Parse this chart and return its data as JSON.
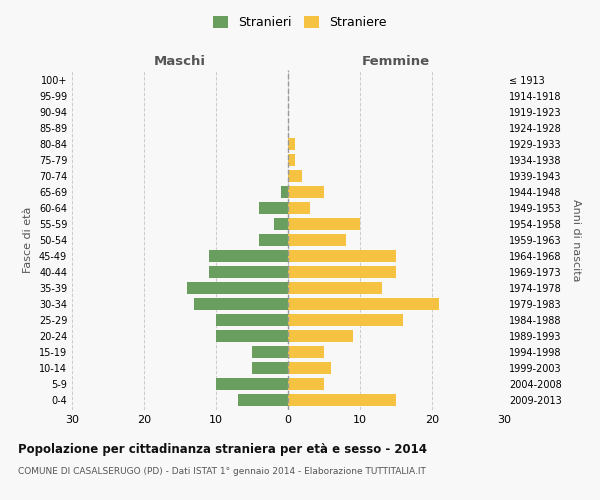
{
  "age_groups": [
    "0-4",
    "5-9",
    "10-14",
    "15-19",
    "20-24",
    "25-29",
    "30-34",
    "35-39",
    "40-44",
    "45-49",
    "50-54",
    "55-59",
    "60-64",
    "65-69",
    "70-74",
    "75-79",
    "80-84",
    "85-89",
    "90-94",
    "95-99",
    "100+"
  ],
  "birth_years": [
    "2009-2013",
    "2004-2008",
    "1999-2003",
    "1994-1998",
    "1989-1993",
    "1984-1988",
    "1979-1983",
    "1974-1978",
    "1969-1973",
    "1964-1968",
    "1959-1963",
    "1954-1958",
    "1949-1953",
    "1944-1948",
    "1939-1943",
    "1934-1938",
    "1929-1933",
    "1924-1928",
    "1919-1923",
    "1914-1918",
    "≤ 1913"
  ],
  "maschi": [
    7,
    10,
    5,
    5,
    10,
    10,
    13,
    14,
    11,
    11,
    4,
    2,
    4,
    1,
    0,
    0,
    0,
    0,
    0,
    0,
    0
  ],
  "femmine": [
    15,
    5,
    6,
    5,
    9,
    16,
    21,
    13,
    15,
    15,
    8,
    10,
    3,
    5,
    2,
    1,
    1,
    0,
    0,
    0,
    0
  ],
  "maschi_color": "#6a9e5e",
  "femmine_color": "#f5c242",
  "title": "Popolazione per cittadinanza straniera per età e sesso - 2014",
  "subtitle": "COMUNE DI CASALSERUGO (PD) - Dati ISTAT 1° gennaio 2014 - Elaborazione TUTTITALIA.IT",
  "xlabel_left": "Maschi",
  "xlabel_right": "Femmine",
  "ylabel_left": "Fasce di età",
  "ylabel_right": "Anni di nascita",
  "xlim": 30,
  "legend_stranieri": "Stranieri",
  "legend_straniere": "Straniere",
  "bg_color": "#f8f8f8",
  "grid_color": "#cccccc",
  "bar_height": 0.75
}
